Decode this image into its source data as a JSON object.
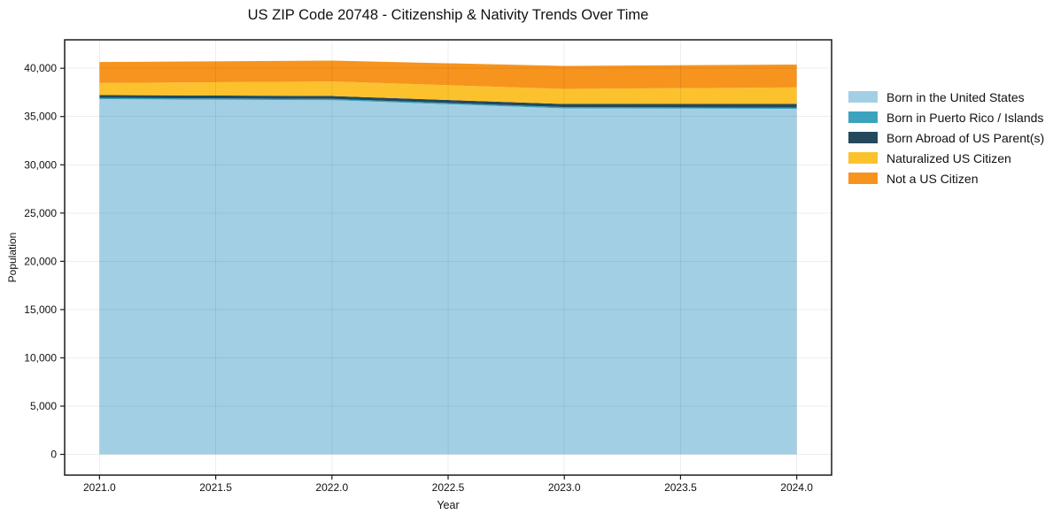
{
  "title": "US ZIP Code 20748 - Citizenship & Nativity Trends Over Time",
  "chart_data": {
    "type": "area",
    "stacked": true,
    "title": "US ZIP Code 20748 - Citizenship & Nativity Trends Over Time",
    "xlabel": "Year",
    "ylabel": "Population",
    "x": [
      2021,
      2022,
      2023,
      2024
    ],
    "series": [
      {
        "name": "Born in the United States",
        "color": "#a3cfe5",
        "values": [
          36800,
          36700,
          35850,
          35800
        ]
      },
      {
        "name": "Born in Puerto Rico / Islands",
        "color": "#3ba3bd",
        "values": [
          130,
          130,
          120,
          120
        ]
      },
      {
        "name": "Born Abroad of US Parent(s)",
        "color": "#24485c",
        "values": [
          290,
          300,
          330,
          380
        ]
      },
      {
        "name": "Naturalized US Citizen",
        "color": "#fcc22d",
        "values": [
          1260,
          1500,
          1560,
          1720
        ]
      },
      {
        "name": "Not a US Citizen",
        "color": "#f6941e",
        "values": [
          2170,
          2170,
          2390,
          2360
        ]
      }
    ],
    "totals": [
      40650,
      40800,
      40250,
      40380
    ],
    "xlim": [
      2020.85,
      2024.15
    ],
    "ylim": [
      -2150,
      42950
    ],
    "x_ticks": [
      2021.0,
      2021.5,
      2022.0,
      2022.5,
      2023.0,
      2023.5,
      2024.0
    ],
    "x_tick_labels": [
      "2021.0",
      "2021.5",
      "2022.0",
      "2022.5",
      "2023.0",
      "2023.5",
      "2024.0"
    ],
    "y_ticks": [
      0,
      5000,
      10000,
      15000,
      20000,
      25000,
      30000,
      35000,
      40000
    ],
    "y_tick_labels": [
      "0",
      "5,000",
      "10,000",
      "15,000",
      "20,000",
      "25,000",
      "30,000",
      "35,000",
      "40,000"
    ],
    "grid": true,
    "legend_position": "right-outside",
    "legend_frame": false,
    "colors": {
      "grid": "#000000",
      "grid_opacity": 0.07,
      "spine": "#1a1a1a",
      "background": "#ffffff"
    }
  }
}
